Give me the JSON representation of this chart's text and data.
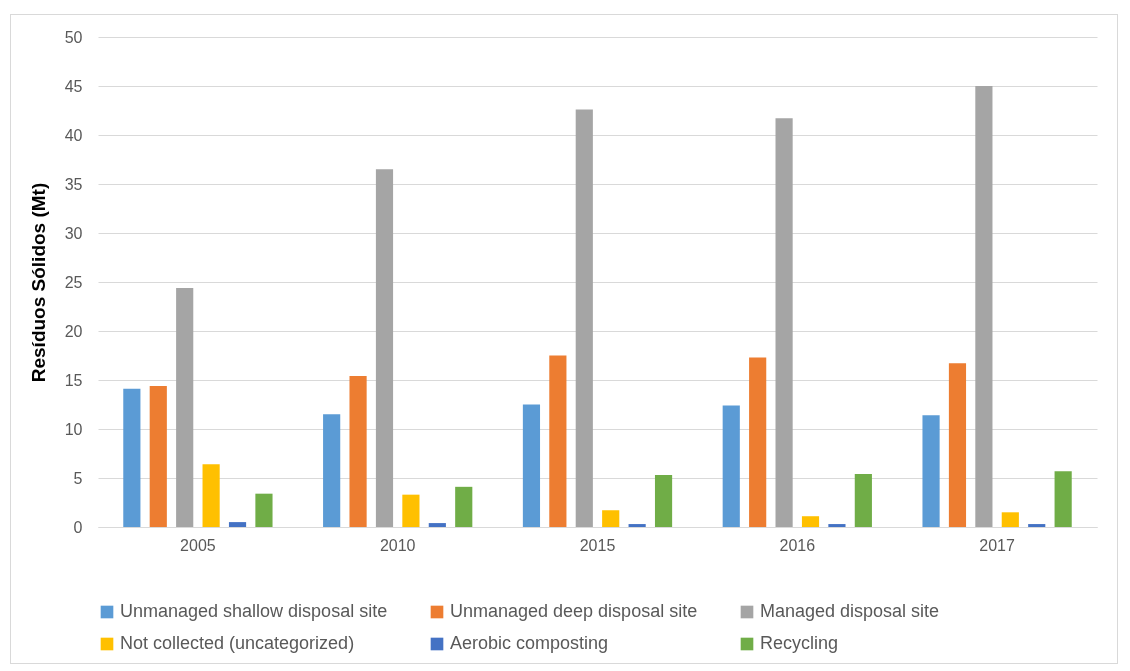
{
  "chart_data": {
    "type": "bar",
    "ylabel": "Resíduos Sólidos (Mt)",
    "categories": [
      "2005",
      "2010",
      "2015",
      "2016",
      "2017"
    ],
    "series": [
      {
        "name": "Unmanaged shallow disposal site",
        "color": "#5b9bd5",
        "values": [
          14.1,
          11.5,
          12.5,
          12.4,
          11.4
        ]
      },
      {
        "name": "Unmanaged deep disposal site",
        "color": "#ed7d31",
        "values": [
          14.4,
          15.4,
          17.5,
          17.3,
          16.7
        ]
      },
      {
        "name": "Managed disposal site",
        "color": "#a5a5a5",
        "values": [
          24.4,
          36.5,
          42.6,
          41.7,
          45.0
        ]
      },
      {
        "name": "Not collected (uncategorized)",
        "color": "#ffc000",
        "values": [
          6.4,
          3.3,
          1.7,
          1.1,
          1.5
        ]
      },
      {
        "name": "Aerobic composting",
        "color": "#4472c4",
        "values": [
          0.5,
          0.4,
          0.3,
          0.3,
          0.3
        ]
      },
      {
        "name": "Recycling",
        "color": "#70ad47",
        "values": [
          3.4,
          4.1,
          5.3,
          5.4,
          5.7
        ]
      }
    ],
    "ylim": [
      0,
      50
    ],
    "yticks": [
      0,
      5,
      10,
      15,
      20,
      25,
      30,
      35,
      40,
      45,
      50
    ],
    "grid": "y",
    "legend": "bottom"
  }
}
